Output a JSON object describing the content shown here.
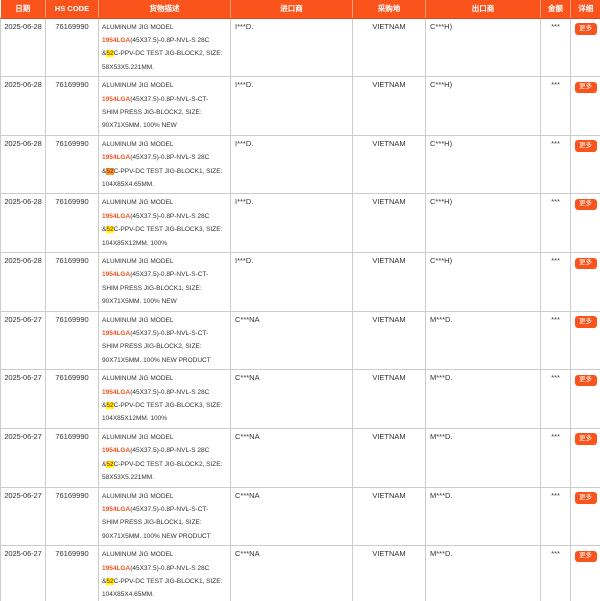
{
  "colors": {
    "accent_orange": "#fa541c",
    "keyword_red": "#f5531f",
    "search_highlight_yellow": "#ffff00",
    "search_highlight_active_orange": "#ff9632",
    "grid_border": "#cccccc"
  },
  "table": {
    "columns": [
      {
        "key": "date",
        "label": "日期"
      },
      {
        "key": "hs_code",
        "label": "HS CODE"
      },
      {
        "key": "description",
        "label": "货物描述"
      },
      {
        "key": "importer",
        "label": "进口商"
      },
      {
        "key": "purchase_place",
        "label": "采购地"
      },
      {
        "key": "exporter",
        "label": "出口商"
      },
      {
        "key": "amount",
        "label": "金额"
      },
      {
        "key": "detail",
        "label": "详细"
      }
    ],
    "rows": [
      {
        "date": "2025-06-28",
        "hs_code": "76169990",
        "description_parts": [
          {
            "text": "ALUMINUM JIG MODEL\n",
            "highlight": "none"
          },
          {
            "text": "1954LGA",
            "highlight": "keyword"
          },
          {
            "text": "(45X37.5)-0.8P-NVL-S 28C\n&",
            "highlight": "none"
          },
          {
            "text": "52",
            "highlight": "yellow"
          },
          {
            "text": "C-PPV-DC TEST JIG-BLOCK2, SIZE:\n58X53X5.221MM.",
            "highlight": "none"
          }
        ],
        "importer": "I***D.",
        "purchase_place": "VIETNAM",
        "exporter": "C***H)",
        "amount": "***",
        "detail_label": "更多"
      },
      {
        "date": "2025-06-28",
        "hs_code": "76169990",
        "description_parts": [
          {
            "text": "ALUMINUM JIG MODEL\n",
            "highlight": "none"
          },
          {
            "text": "1954LGA",
            "highlight": "keyword"
          },
          {
            "text": "(45X37.5)-0.8P-NVL-S-CT-\nSHIM PRESS JIG-BLOCK2, SIZE:\n90X71X5MM. 100% NEW",
            "highlight": "none"
          }
        ],
        "importer": "I***D.",
        "purchase_place": "VIETNAM",
        "exporter": "C***H)",
        "amount": "***",
        "detail_label": "更多"
      },
      {
        "date": "2025-06-28",
        "hs_code": "76169990",
        "description_parts": [
          {
            "text": "ALUMINUM JIG MODEL\n",
            "highlight": "none"
          },
          {
            "text": "1954LGA",
            "highlight": "keyword"
          },
          {
            "text": "(45X37.5)-0.8P-NVL-S 28C\n&",
            "highlight": "none"
          },
          {
            "text": "52",
            "highlight": "orange"
          },
          {
            "text": "C-PPV-DC TEST JIG-BLOCK1, SIZE:\n104X85X4.65MM.",
            "highlight": "none"
          }
        ],
        "importer": "I***D.",
        "purchase_place": "VIETNAM",
        "exporter": "C***H)",
        "amount": "***",
        "detail_label": "更多"
      },
      {
        "date": "2025-06-28",
        "hs_code": "76169990",
        "description_parts": [
          {
            "text": "ALUMINUM JIG MODEL\n",
            "highlight": "none"
          },
          {
            "text": "1954LGA",
            "highlight": "keyword"
          },
          {
            "text": "(45X37.5)-0.8P-NVL-S 28C\n&",
            "highlight": "none"
          },
          {
            "text": "52",
            "highlight": "yellow"
          },
          {
            "text": "C-PPV-DC TEST JIG-BLOCK3, SIZE:\n104X85X12MM. 100%",
            "highlight": "none"
          }
        ],
        "importer": "I***D.",
        "purchase_place": "VIETNAM",
        "exporter": "C***H)",
        "amount": "***",
        "detail_label": "更多"
      },
      {
        "date": "2025-06-28",
        "hs_code": "76169990",
        "description_parts": [
          {
            "text": "ALUMINUM JIG MODEL\n",
            "highlight": "none"
          },
          {
            "text": "1954LGA",
            "highlight": "keyword"
          },
          {
            "text": "(45X37.5)-0.8P-NVL-S-CT-\nSHIM PRESS JIG-BLOCK1, SIZE:\n90X71X5MM. 100% NEW",
            "highlight": "none"
          }
        ],
        "importer": "I***D.",
        "purchase_place": "VIETNAM",
        "exporter": "C***H)",
        "amount": "***",
        "detail_label": "更多"
      },
      {
        "date": "2025-06-27",
        "hs_code": "76169990",
        "description_parts": [
          {
            "text": "ALUMINUM JIG MODEL\n",
            "highlight": "none"
          },
          {
            "text": "1954LGA",
            "highlight": "keyword"
          },
          {
            "text": "(45X37.5)-0.8P-NVL-S-CT-\nSHIM PRESS JIG-BLOCK2, SIZE:\n90X71X5MM. 100% NEW PRODUCT",
            "highlight": "none"
          }
        ],
        "importer": "C***NA",
        "purchase_place": "VIETNAM",
        "exporter": "M***D.",
        "amount": "***",
        "detail_label": "更多"
      },
      {
        "date": "2025-06-27",
        "hs_code": "76169990",
        "description_parts": [
          {
            "text": "ALUMINUM JIG MODEL\n",
            "highlight": "none"
          },
          {
            "text": "1954LGA",
            "highlight": "keyword"
          },
          {
            "text": "(45X37.5)-0.8P-NVL-S 28C\n&",
            "highlight": "none"
          },
          {
            "text": "52",
            "highlight": "yellow"
          },
          {
            "text": "C-PPV-DC TEST JIG-BLOCK3, SIZE:\n104X85X12MM. 100%",
            "highlight": "none"
          }
        ],
        "importer": "C***NA",
        "purchase_place": "VIETNAM",
        "exporter": "M***D.",
        "amount": "***",
        "detail_label": "更多"
      },
      {
        "date": "2025-06-27",
        "hs_code": "76169990",
        "description_parts": [
          {
            "text": "ALUMINUM JIG MODEL\n",
            "highlight": "none"
          },
          {
            "text": "1954LGA",
            "highlight": "keyword"
          },
          {
            "text": "(45X37.5)-0.8P-NVL-S 28C\n&",
            "highlight": "none"
          },
          {
            "text": "52",
            "highlight": "yellow"
          },
          {
            "text": "C-PPV-DC TEST JIG-BLOCK2, SIZE:\n58X53X5.221MM.",
            "highlight": "none"
          }
        ],
        "importer": "C***NA",
        "purchase_place": "VIETNAM",
        "exporter": "M***D.",
        "amount": "***",
        "detail_label": "更多"
      },
      {
        "date": "2025-06-27",
        "hs_code": "76169990",
        "description_parts": [
          {
            "text": "ALUMINUM JIG MODEL\n",
            "highlight": "none"
          },
          {
            "text": "1954LGA",
            "highlight": "keyword"
          },
          {
            "text": "(45X37.5)-0.8P-NVL-S-CT-\nSHIM PRESS JIG-BLOCK1, SIZE:\n90X71X5MM. 100% NEW PRODUCT",
            "highlight": "none"
          }
        ],
        "importer": "C***NA",
        "purchase_place": "VIETNAM",
        "exporter": "M***D.",
        "amount": "***",
        "detail_label": "更多"
      },
      {
        "date": "2025-06-27",
        "hs_code": "76169990",
        "description_parts": [
          {
            "text": "ALUMINUM JIG MODEL\n",
            "highlight": "none"
          },
          {
            "text": "1954LGA",
            "highlight": "keyword"
          },
          {
            "text": "(45X37.5)-0.8P-NVL-S 28C\n&",
            "highlight": "none"
          },
          {
            "text": "52",
            "highlight": "yellow"
          },
          {
            "text": "C-PPV-DC TEST JIG-BLOCK1, SIZE:\n104X85X4.65MM.",
            "highlight": "none"
          }
        ],
        "importer": "C***NA",
        "purchase_place": "VIETNAM",
        "exporter": "M***D.",
        "amount": "***",
        "detail_label": "更多"
      }
    ]
  }
}
